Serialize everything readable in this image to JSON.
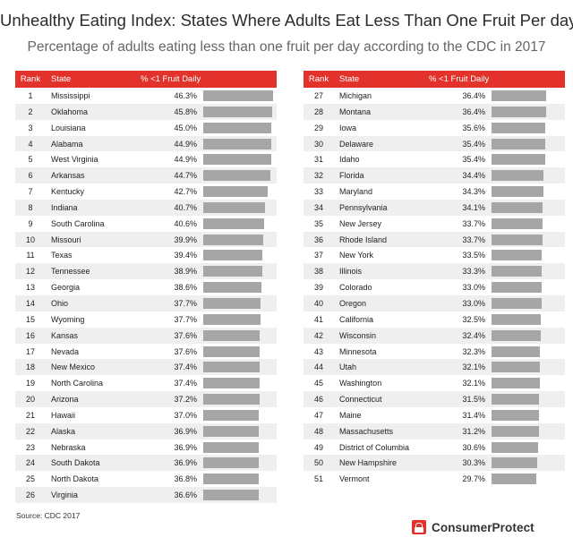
{
  "chart_data": {
    "type": "table",
    "title": "Unhealthy Eating Index: States Where Adults Eat Less Than One Fruit Per day",
    "subtitle": "Percentage of adults eating less than one fruit per day according to the CDC in 2017",
    "columns": [
      "Rank",
      "State",
      "% <1 Fruit Daily"
    ],
    "bar_max": 46.3,
    "rows": [
      {
        "rank": "1",
        "state": "Mississippi",
        "value": 46.3,
        "label": "46.3%"
      },
      {
        "rank": "2",
        "state": "Oklahoma",
        "value": 45.8,
        "label": "45.8%"
      },
      {
        "rank": "3",
        "state": "Louisiana",
        "value": 45.0,
        "label": "45.0%"
      },
      {
        "rank": "4",
        "state": "Alabama",
        "value": 44.9,
        "label": "44.9%"
      },
      {
        "rank": "5",
        "state": "West Virginia",
        "value": 44.9,
        "label": "44.9%"
      },
      {
        "rank": "6",
        "state": "Arkansas",
        "value": 44.7,
        "label": "44.7%"
      },
      {
        "rank": "7",
        "state": "Kentucky",
        "value": 42.7,
        "label": "42.7%"
      },
      {
        "rank": "8",
        "state": "Indiana",
        "value": 40.7,
        "label": "40.7%"
      },
      {
        "rank": "9",
        "state": "South Carolina",
        "value": 40.6,
        "label": "40.6%"
      },
      {
        "rank": "10",
        "state": "Missouri",
        "value": 39.9,
        "label": "39.9%"
      },
      {
        "rank": "11",
        "state": "Texas",
        "value": 39.4,
        "label": "39.4%"
      },
      {
        "rank": "12",
        "state": "Tennessee",
        "value": 38.9,
        "label": "38.9%"
      },
      {
        "rank": "13",
        "state": "Georgia",
        "value": 38.6,
        "label": "38.6%"
      },
      {
        "rank": "14",
        "state": "Ohio",
        "value": 37.7,
        "label": "37.7%"
      },
      {
        "rank": "15",
        "state": "Wyoming",
        "value": 37.7,
        "label": "37.7%"
      },
      {
        "rank": "16",
        "state": "Kansas",
        "value": 37.6,
        "label": "37.6%"
      },
      {
        "rank": "17",
        "state": "Nevada",
        "value": 37.6,
        "label": "37.6%"
      },
      {
        "rank": "18",
        "state": "New Mexico",
        "value": 37.4,
        "label": "37.4%"
      },
      {
        "rank": "19",
        "state": "North Carolina",
        "value": 37.4,
        "label": "37.4%"
      },
      {
        "rank": "20",
        "state": "Arizona",
        "value": 37.2,
        "label": "37.2%"
      },
      {
        "rank": "21",
        "state": "Hawaii",
        "value": 37.0,
        "label": "37.0%"
      },
      {
        "rank": "22",
        "state": "Alaska",
        "value": 36.9,
        "label": "36.9%"
      },
      {
        "rank": "23",
        "state": "Nebraska",
        "value": 36.9,
        "label": "36.9%"
      },
      {
        "rank": "24",
        "state": "South Dakota",
        "value": 36.9,
        "label": "36.9%"
      },
      {
        "rank": "25",
        "state": "North Dakota",
        "value": 36.8,
        "label": "36.8%"
      },
      {
        "rank": "26",
        "state": "Virginia",
        "value": 36.6,
        "label": "36.6%"
      },
      {
        "rank": "27",
        "state": "Michigan",
        "value": 36.4,
        "label": "36.4%"
      },
      {
        "rank": "28",
        "state": "Montana",
        "value": 36.4,
        "label": "36.4%"
      },
      {
        "rank": "29",
        "state": "Iowa",
        "value": 35.6,
        "label": "35.6%"
      },
      {
        "rank": "30",
        "state": "Delaware",
        "value": 35.4,
        "label": "35.4%"
      },
      {
        "rank": "31",
        "state": "Idaho",
        "value": 35.4,
        "label": "35.4%"
      },
      {
        "rank": "32",
        "state": "Florida",
        "value": 34.4,
        "label": "34.4%"
      },
      {
        "rank": "33",
        "state": "Maryland",
        "value": 34.3,
        "label": "34.3%"
      },
      {
        "rank": "34",
        "state": "Pennsylvania",
        "value": 34.1,
        "label": "34.1%"
      },
      {
        "rank": "35",
        "state": "New Jersey",
        "value": 33.7,
        "label": "33.7%"
      },
      {
        "rank": "36",
        "state": "Rhode Island",
        "value": 33.7,
        "label": "33.7%"
      },
      {
        "rank": "37",
        "state": "New York",
        "value": 33.5,
        "label": "33.5%"
      },
      {
        "rank": "38",
        "state": "Illinois",
        "value": 33.3,
        "label": "33.3%"
      },
      {
        "rank": "39",
        "state": "Colorado",
        "value": 33.0,
        "label": "33.0%"
      },
      {
        "rank": "40",
        "state": "Oregon",
        "value": 33.0,
        "label": "33.0%"
      },
      {
        "rank": "41",
        "state": "California",
        "value": 32.5,
        "label": "32.5%"
      },
      {
        "rank": "42",
        "state": "Wisconsin",
        "value": 32.4,
        "label": "32.4%"
      },
      {
        "rank": "43",
        "state": "Minnesota",
        "value": 32.3,
        "label": "32.3%"
      },
      {
        "rank": "44",
        "state": "Utah",
        "value": 32.1,
        "label": "32.1%"
      },
      {
        "rank": "45",
        "state": "Washington",
        "value": 32.1,
        "label": "32.1%"
      },
      {
        "rank": "46",
        "state": "Connecticut",
        "value": 31.5,
        "label": "31.5%"
      },
      {
        "rank": "47",
        "state": "Maine",
        "value": 31.4,
        "label": "31.4%"
      },
      {
        "rank": "48",
        "state": "Massachusetts",
        "value": 31.2,
        "label": "31.2%"
      },
      {
        "rank": "49",
        "state": "District of Columbia",
        "value": 30.6,
        "label": "30.6%"
      },
      {
        "rank": "50",
        "state": "New Hampshire",
        "value": 30.3,
        "label": "30.3%"
      },
      {
        "rank": "51",
        "state": "Vermont",
        "value": 29.7,
        "label": "29.7%"
      }
    ]
  },
  "source": "Source: CDC 2017",
  "brand": {
    "name": "ConsumerProtect",
    "icon": "lock-icon"
  },
  "colors": {
    "accent": "#e3322b",
    "bar": "#a6a6a6",
    "stripe": "#efefef"
  }
}
